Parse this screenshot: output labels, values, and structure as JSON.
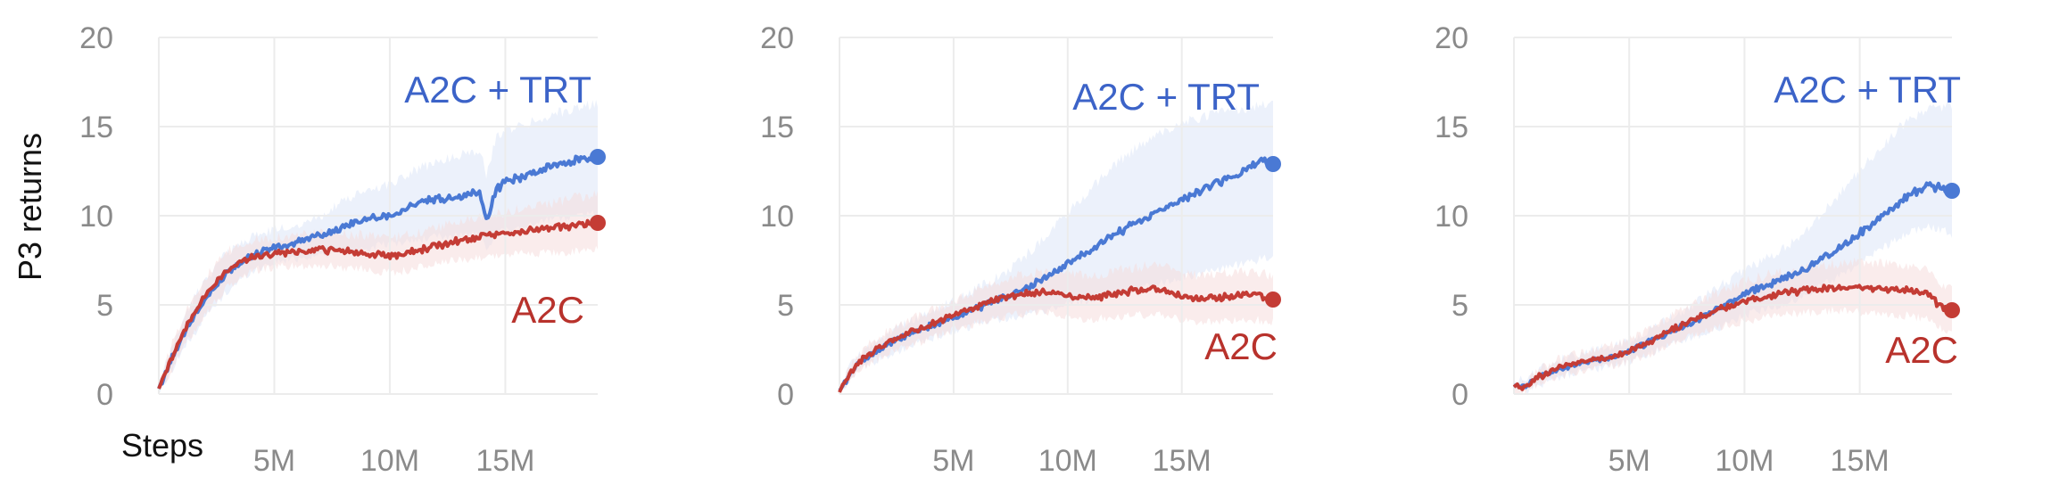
{
  "chart_data": [
    {
      "type": "line",
      "title": "",
      "xlabel": "Steps",
      "ylabel": "P3 returns",
      "xlim": [
        0,
        19000000
      ],
      "ylim": [
        0,
        20
      ],
      "x_ticks": [
        5000000,
        10000000,
        15000000
      ],
      "x_tick_labels": [
        "5M",
        "10M",
        "15M"
      ],
      "y_ticks": [
        0,
        5,
        10,
        15,
        20
      ],
      "y_tick_labels": [
        "0",
        "5",
        "10",
        "15",
        "20"
      ],
      "grid": true,
      "series": [
        {
          "name": "A2C + TRT",
          "color": "#4a79d4",
          "band_color": "#dce6f8",
          "x": [
            0,
            500000,
            1000000,
            1500000,
            2000000,
            3000000,
            4000000,
            5000000,
            6000000,
            7000000,
            8000000,
            9000000,
            10000000,
            11000000,
            12000000,
            13000000,
            13900000,
            14200000,
            14600000,
            15000000,
            16000000,
            17000000,
            18000000,
            19000000
          ],
          "y": [
            0.3,
            1.8,
            3.2,
            4.3,
            5.3,
            6.9,
            7.8,
            8.2,
            8.5,
            8.9,
            9.4,
            9.8,
            10.0,
            10.6,
            10.9,
            11.1,
            11.3,
            9.7,
            11.5,
            11.9,
            12.3,
            12.8,
            13.1,
            13.3
          ],
          "y_lower": [
            0.1,
            1.2,
            2.4,
            3.3,
            4.3,
            5.8,
            6.9,
            7.4,
            7.6,
            7.8,
            8.0,
            8.2,
            8.4,
            8.6,
            8.8,
            8.9,
            9.0,
            7.8,
            9.0,
            9.2,
            9.5,
            9.8,
            10.0,
            10.2
          ],
          "y_upper": [
            0.5,
            2.4,
            4.0,
            5.3,
            6.4,
            8.0,
            8.8,
            9.2,
            9.5,
            10.0,
            10.8,
            11.4,
            11.8,
            12.5,
            13.0,
            13.4,
            13.7,
            12.2,
            14.4,
            14.8,
            15.2,
            15.7,
            16.0,
            16.3
          ]
        },
        {
          "name": "A2C",
          "color": "#c43c35",
          "band_color": "#f6dddc",
          "x": [
            0,
            500000,
            1000000,
            1500000,
            2000000,
            3000000,
            4000000,
            5000000,
            6000000,
            7000000,
            8000000,
            9000000,
            10000000,
            11000000,
            12000000,
            13000000,
            14000000,
            15000000,
            16000000,
            17000000,
            18000000,
            19000000
          ],
          "y": [
            0.3,
            1.9,
            3.3,
            4.5,
            5.5,
            7.0,
            7.7,
            7.9,
            8.0,
            8.1,
            8.0,
            7.9,
            7.7,
            8.0,
            8.3,
            8.6,
            8.8,
            9.0,
            9.2,
            9.3,
            9.5,
            9.6
          ],
          "y_lower": [
            0.1,
            1.2,
            2.5,
            3.5,
            4.5,
            6.0,
            6.9,
            7.1,
            7.2,
            7.2,
            7.1,
            7.0,
            6.8,
            7.0,
            7.3,
            7.5,
            7.7,
            7.8,
            7.9,
            7.9,
            8.0,
            8.1
          ],
          "y_upper": [
            0.5,
            2.6,
            4.2,
            5.5,
            6.5,
            8.0,
            8.6,
            8.8,
            8.9,
            9.0,
            9.0,
            8.9,
            8.7,
            9.0,
            9.3,
            9.7,
            9.9,
            10.2,
            10.5,
            10.7,
            11.0,
            11.2
          ]
        }
      ]
    },
    {
      "type": "line",
      "title": "",
      "xlabel": "",
      "ylabel": "",
      "xlim": [
        0,
        19000000
      ],
      "ylim": [
        0,
        20
      ],
      "x_ticks": [
        5000000,
        10000000,
        15000000
      ],
      "x_tick_labels": [
        "5M",
        "10M",
        "15M"
      ],
      "y_ticks": [
        0,
        5,
        10,
        15,
        20
      ],
      "y_tick_labels": [
        "0",
        "5",
        "10",
        "15",
        "20"
      ],
      "grid": true,
      "series": [
        {
          "name": "A2C + TRT",
          "color": "#4a79d4",
          "band_color": "#dce6f8",
          "x": [
            0,
            500000,
            1000000,
            2000000,
            3000000,
            4000000,
            5000000,
            6000000,
            7000000,
            8000000,
            9000000,
            10000000,
            11000000,
            12000000,
            13000000,
            14000000,
            15000000,
            16000000,
            17000000,
            18000000,
            18500000,
            19000000
          ],
          "y": [
            0.2,
            1.2,
            1.9,
            2.7,
            3.3,
            3.8,
            4.3,
            4.8,
            5.3,
            5.8,
            6.5,
            7.3,
            8.1,
            8.9,
            9.6,
            10.3,
            10.9,
            11.5,
            12.1,
            12.7,
            13.2,
            12.9
          ],
          "y_lower": [
            0.1,
            0.8,
            1.4,
            2.1,
            2.6,
            3.1,
            3.5,
            3.9,
            4.2,
            4.4,
            4.7,
            5.0,
            5.3,
            5.6,
            5.9,
            6.2,
            6.5,
            6.8,
            7.1,
            7.4,
            7.6,
            7.7
          ],
          "y_upper": [
            0.3,
            1.6,
            2.4,
            3.3,
            4.0,
            4.6,
            5.2,
            5.9,
            6.6,
            7.6,
            8.8,
            10.2,
            11.5,
            12.8,
            13.8,
            14.6,
            15.2,
            15.6,
            15.9,
            16.1,
            16.2,
            16.2
          ]
        },
        {
          "name": "A2C",
          "color": "#c43c35",
          "band_color": "#f6dddc",
          "x": [
            0,
            500000,
            1000000,
            2000000,
            3000000,
            4000000,
            5000000,
            6000000,
            7000000,
            8000000,
            9000000,
            10000000,
            11000000,
            12000000,
            13000000,
            14000000,
            15000000,
            16000000,
            17000000,
            18000000,
            19000000
          ],
          "y": [
            0.1,
            1.2,
            2.0,
            2.8,
            3.4,
            3.9,
            4.4,
            4.9,
            5.3,
            5.6,
            5.7,
            5.5,
            5.4,
            5.6,
            5.8,
            5.9,
            5.5,
            5.3,
            5.5,
            5.6,
            5.3
          ],
          "y_lower": [
            0.0,
            0.8,
            1.5,
            2.2,
            2.7,
            3.1,
            3.6,
            4.0,
            4.3,
            4.5,
            4.5,
            4.3,
            4.2,
            4.3,
            4.4,
            4.5,
            4.2,
            4.0,
            4.1,
            4.2,
            4.0
          ],
          "y_upper": [
            0.2,
            1.6,
            2.5,
            3.4,
            4.1,
            4.7,
            5.2,
            5.8,
            6.3,
            6.7,
            6.9,
            6.7,
            6.6,
            6.9,
            7.1,
            7.3,
            6.8,
            6.6,
            6.8,
            6.9,
            6.6
          ]
        }
      ]
    },
    {
      "type": "line",
      "title": "",
      "xlabel": "",
      "ylabel": "",
      "xlim": [
        0,
        19000000
      ],
      "ylim": [
        0,
        20
      ],
      "x_ticks": [
        5000000,
        10000000,
        15000000
      ],
      "x_tick_labels": [
        "5M",
        "10M",
        "15M"
      ],
      "y_ticks": [
        0,
        5,
        10,
        15,
        20
      ],
      "y_tick_labels": [
        "0",
        "5",
        "10",
        "15",
        "20"
      ],
      "grid": true,
      "series": [
        {
          "name": "A2C + TRT",
          "color": "#4a79d4",
          "band_color": "#dce6f8",
          "x": [
            0,
            500000,
            1000000,
            2000000,
            3000000,
            4000000,
            5000000,
            6000000,
            7000000,
            8000000,
            9000000,
            10000000,
            11000000,
            12000000,
            13000000,
            14000000,
            15000000,
            16000000,
            17000000,
            18000000,
            19000000
          ],
          "y": [
            0.5,
            0.4,
            0.9,
            1.4,
            1.8,
            2.0,
            2.4,
            3.0,
            3.6,
            4.2,
            4.9,
            5.6,
            6.1,
            6.6,
            7.3,
            8.1,
            9.0,
            10.0,
            11.0,
            11.7,
            11.4
          ],
          "y_lower": [
            0.2,
            0.1,
            0.5,
            0.9,
            1.3,
            1.5,
            1.8,
            2.3,
            2.8,
            3.3,
            3.8,
            4.4,
            4.8,
            5.2,
            5.8,
            6.5,
            7.3,
            8.2,
            9.0,
            9.4,
            9.0
          ],
          "y_upper": [
            0.8,
            0.7,
            1.3,
            1.9,
            2.3,
            2.6,
            3.0,
            3.7,
            4.4,
            5.2,
            6.1,
            6.9,
            7.6,
            8.4,
            9.6,
            11.0,
            12.5,
            14.0,
            15.3,
            16.0,
            16.1
          ]
        },
        {
          "name": "A2C",
          "color": "#c43c35",
          "band_color": "#f6dddc",
          "x": [
            0,
            500000,
            1000000,
            2000000,
            3000000,
            4000000,
            5000000,
            6000000,
            7000000,
            8000000,
            9000000,
            10000000,
            11000000,
            12000000,
            13000000,
            14000000,
            15000000,
            16000000,
            17000000,
            18000000,
            18500000,
            19000000
          ],
          "y": [
            0.4,
            0.4,
            0.9,
            1.5,
            1.8,
            2.0,
            2.4,
            3.0,
            3.7,
            4.3,
            4.8,
            5.2,
            5.5,
            5.7,
            5.9,
            6.0,
            6.0,
            5.9,
            5.8,
            5.6,
            4.9,
            4.7
          ],
          "y_lower": [
            0.2,
            0.1,
            0.5,
            1.0,
            1.3,
            1.5,
            1.8,
            2.3,
            2.9,
            3.4,
            3.8,
            4.1,
            4.3,
            4.5,
            4.6,
            4.7,
            4.6,
            4.5,
            4.4,
            4.2,
            3.7,
            3.5
          ],
          "y_upper": [
            0.6,
            0.7,
            1.3,
            2.0,
            2.3,
            2.6,
            3.0,
            3.7,
            4.5,
            5.2,
            5.8,
            6.3,
            6.7,
            6.9,
            7.2,
            7.3,
            7.4,
            7.3,
            7.2,
            7.0,
            6.2,
            6.0
          ]
        }
      ]
    }
  ]
}
